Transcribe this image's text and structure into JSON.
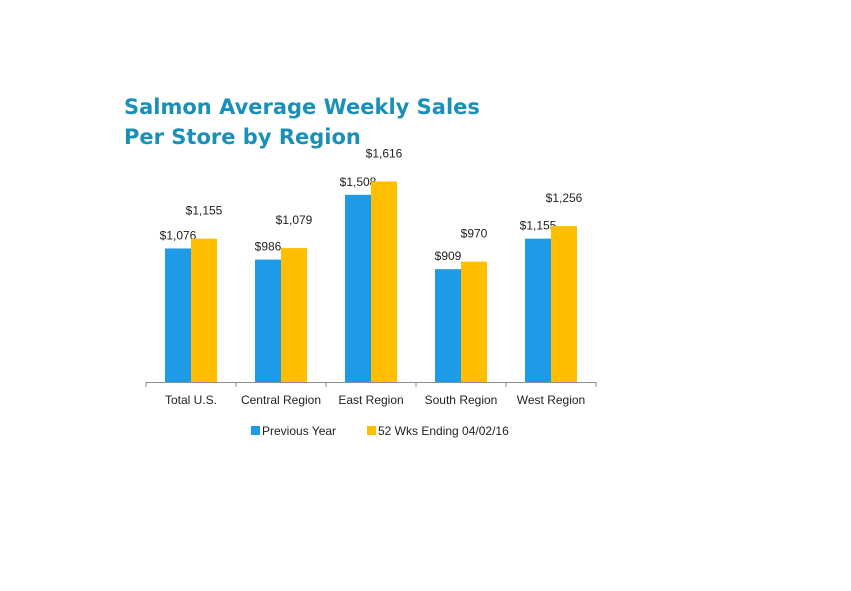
{
  "chart_data": {
    "type": "bar",
    "title_lines": [
      "Salmon Average Weekly Sales",
      "Per Store by Region"
    ],
    "categories": [
      "Total U.S.",
      "Central Region",
      "East Region",
      "South Region",
      "West Region"
    ],
    "series": [
      {
        "name": "Previous Year",
        "color": "#1e9be6",
        "values": [
          1076,
          986,
          1508,
          909,
          1155
        ],
        "labels": [
          "$1,076",
          "$986",
          "$1,508",
          "$909",
          "$1,155"
        ]
      },
      {
        "name": "52 Wks Ending 04/02/16",
        "color": "#ffbf00",
        "values": [
          1155,
          1079,
          1616,
          970,
          1256
        ],
        "labels": [
          "$1,155",
          "$1,079",
          "$1,616",
          "$970",
          "$1,256"
        ]
      }
    ],
    "xlabel": "",
    "ylabel": "",
    "ylim": [
      0,
      1700
    ],
    "grid": false,
    "y_axis_visible": false,
    "legend_position": "bottom"
  }
}
